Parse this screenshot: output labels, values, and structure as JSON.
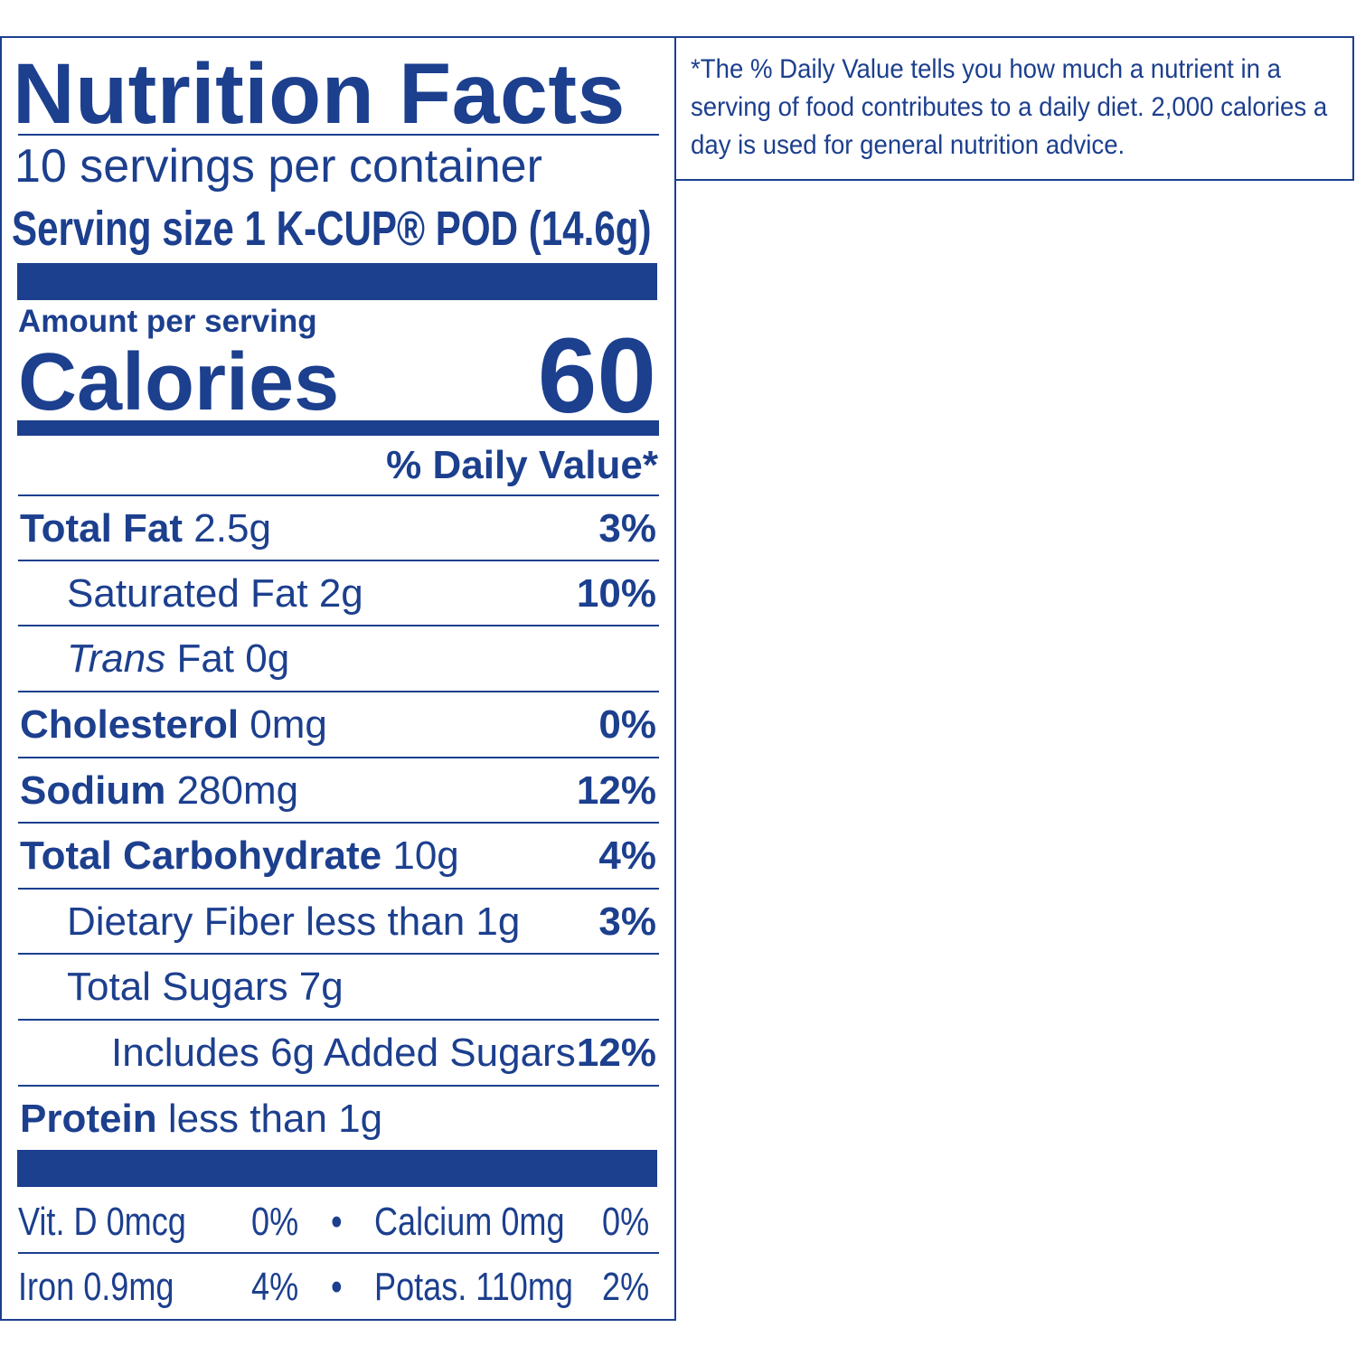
{
  "label": {
    "title": "Nutrition Facts",
    "servings": "10 servings per container",
    "serving_size_label": "Serving size",
    "serving_size_value": "1 K-CUP® POD (14.6g)",
    "amount_per_serving": "Amount per serving",
    "calories_label": "Calories",
    "calories_value": "60",
    "daily_value_header": "% Daily Value*",
    "rows": [
      {
        "name": "Total Fat",
        "amount": "2.5g",
        "dv": "3%"
      },
      {
        "name": "Saturated Fat 2g",
        "dv": "10%"
      },
      {
        "prefix": "Trans",
        "name": "Fat 0g"
      },
      {
        "name": "Cholesterol",
        "amount": "0mg",
        "dv": "0%"
      },
      {
        "name": "Sodium",
        "amount": "280mg",
        "dv": "12%"
      },
      {
        "name": "Total Carbohydrate",
        "amount": "10g",
        "dv": "4%"
      },
      {
        "name": "Dietary Fiber less than 1g",
        "dv": "3%"
      },
      {
        "name": "Total Sugars 7g"
      },
      {
        "name": "Includes 6g Added Sugars",
        "dv": "12%"
      },
      {
        "name": "Protein",
        "amount": "less than 1g"
      }
    ],
    "vitamins": [
      [
        {
          "name": "Vit. D 0mcg",
          "dv": "0%"
        },
        {
          "name": "Calcium 0mg",
          "dv": "0%"
        }
      ],
      [
        {
          "name": "Iron 0.9mg",
          "dv": "4%"
        },
        {
          "name": "Potas. 110mg",
          "dv": "2%"
        }
      ]
    ],
    "bullet": "•"
  },
  "footnote": "*The % Daily Value tells you how much a nutrient in a serving of food contributes to a daily diet. 2,000 calories a day is used for general nutrition advice."
}
